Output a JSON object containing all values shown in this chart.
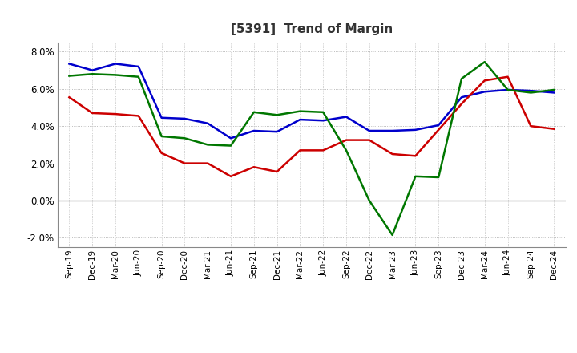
{
  "title": "[5391]  Trend of Margin",
  "x_labels": [
    "Sep-19",
    "Dec-19",
    "Mar-20",
    "Jun-20",
    "Sep-20",
    "Dec-20",
    "Mar-21",
    "Jun-21",
    "Sep-21",
    "Dec-21",
    "Mar-22",
    "Jun-22",
    "Sep-22",
    "Dec-22",
    "Mar-23",
    "Jun-23",
    "Sep-23",
    "Dec-23",
    "Mar-24",
    "Jun-24",
    "Sep-24",
    "Dec-24"
  ],
  "ordinary_income": [
    7.35,
    7.0,
    7.35,
    7.2,
    4.45,
    4.4,
    4.15,
    3.35,
    3.75,
    3.7,
    4.35,
    4.3,
    4.5,
    3.75,
    3.75,
    3.8,
    4.05,
    5.55,
    5.85,
    5.95,
    5.9,
    5.8
  ],
  "net_income": [
    5.55,
    4.7,
    4.65,
    4.55,
    2.55,
    2.0,
    2.0,
    1.3,
    1.8,
    1.55,
    2.7,
    2.7,
    3.25,
    3.25,
    2.5,
    2.4,
    3.8,
    5.2,
    6.45,
    6.65,
    4.0,
    3.85
  ],
  "operating_cashflow": [
    6.7,
    6.8,
    6.75,
    6.65,
    3.45,
    3.35,
    3.0,
    2.95,
    4.75,
    4.6,
    4.8,
    4.75,
    2.7,
    0.0,
    -1.85,
    1.3,
    1.25,
    6.55,
    7.45,
    5.95,
    5.8,
    5.95
  ],
  "ylim": [
    -2.5,
    8.5
  ],
  "yticks": [
    -2.0,
    0.0,
    2.0,
    4.0,
    6.0,
    8.0
  ],
  "line_color_ordinary": "#0000CC",
  "line_color_net": "#CC0000",
  "line_color_cashflow": "#007700",
  "background_color": "#FFFFFF",
  "plot_bg_color": "#FFFFFF",
  "grid_color": "#AAAAAA"
}
